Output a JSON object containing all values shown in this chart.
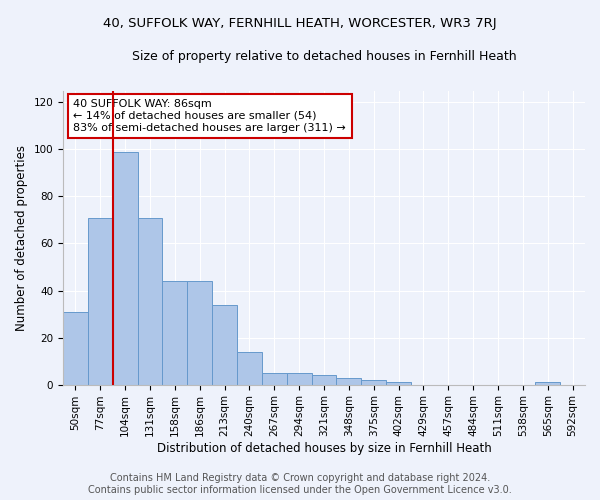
{
  "title1": "40, SUFFOLK WAY, FERNHILL HEATH, WORCESTER, WR3 7RJ",
  "title2": "Size of property relative to detached houses in Fernhill Heath",
  "xlabel": "Distribution of detached houses by size in Fernhill Heath",
  "ylabel": "Number of detached properties",
  "categories": [
    "50sqm",
    "77sqm",
    "104sqm",
    "131sqm",
    "158sqm",
    "186sqm",
    "213sqm",
    "240sqm",
    "267sqm",
    "294sqm",
    "321sqm",
    "348sqm",
    "375sqm",
    "402sqm",
    "429sqm",
    "457sqm",
    "484sqm",
    "511sqm",
    "538sqm",
    "565sqm",
    "592sqm"
  ],
  "values": [
    31,
    71,
    99,
    71,
    44,
    44,
    34,
    14,
    5,
    5,
    4,
    3,
    2,
    1,
    0,
    0,
    0,
    0,
    0,
    1,
    0
  ],
  "bar_color": "#aec6e8",
  "bar_edge_color": "#6699cc",
  "vline_x": 1.5,
  "vline_color": "#cc0000",
  "annotation_text": "40 SUFFOLK WAY: 86sqm\n← 14% of detached houses are smaller (54)\n83% of semi-detached houses are larger (311) →",
  "annotation_box_color": "#ffffff",
  "annotation_box_edge": "#cc0000",
  "ylim": [
    0,
    125
  ],
  "yticks": [
    0,
    20,
    40,
    60,
    80,
    100,
    120
  ],
  "footer1": "Contains HM Land Registry data © Crown copyright and database right 2024.",
  "footer2": "Contains public sector information licensed under the Open Government Licence v3.0.",
  "bg_color": "#eef2fb",
  "plot_bg_color": "#eef2fb",
  "title1_fontsize": 9.5,
  "title2_fontsize": 9,
  "xlabel_fontsize": 8.5,
  "ylabel_fontsize": 8.5,
  "tick_fontsize": 7.5,
  "footer_fontsize": 7,
  "annot_fontsize": 8
}
